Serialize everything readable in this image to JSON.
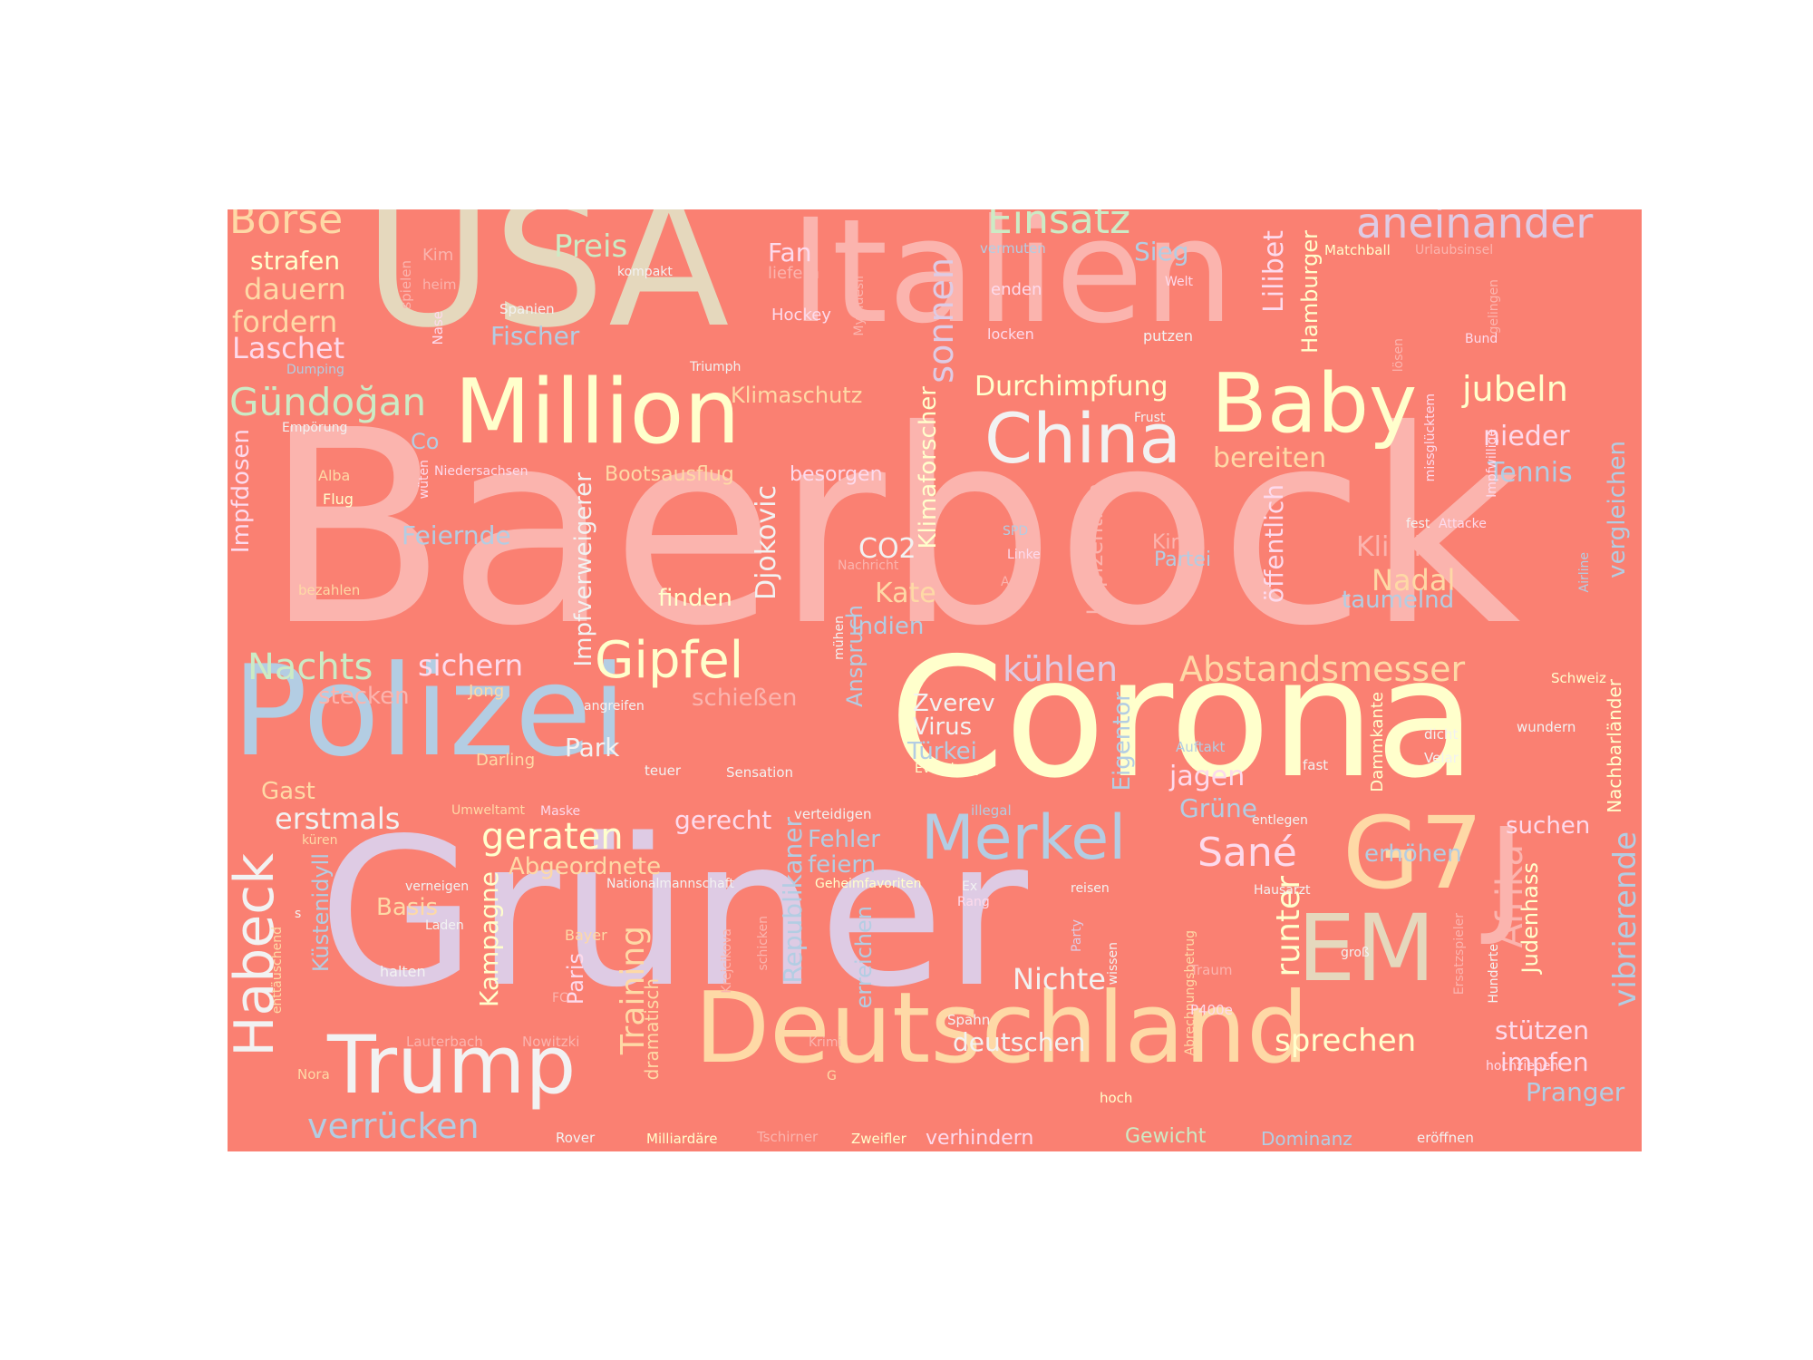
{
  "background_color": "#fa8072",
  "page_color": "#ffffff",
  "palette": {
    "pink": "#fbb4ae",
    "blue": "#b3cde3",
    "green": "#ccebc5",
    "lilac": "#decbe4",
    "orange": "#fed9a6",
    "yellow": "#ffffcc",
    "tan": "#e5d8bd",
    "rose": "#fddaec",
    "grey": "#f2f2f2"
  },
  "words": [
    {
      "text": "Baerbock",
      "color": "pink"
    },
    {
      "text": "Grüner",
      "color": "lilac"
    },
    {
      "text": "Corona",
      "color": "yellow"
    },
    {
      "text": "USA",
      "color": "tan"
    },
    {
      "text": "Italien",
      "color": "pink"
    },
    {
      "text": "Polizei",
      "color": "blue"
    },
    {
      "text": "Deutschland",
      "color": "orange"
    },
    {
      "text": "Million",
      "color": "yellow"
    },
    {
      "text": "Trump",
      "color": "grey"
    },
    {
      "text": "Baby",
      "color": "yellow"
    },
    {
      "text": "China",
      "color": "grey"
    },
    {
      "text": "G7",
      "color": "orange"
    },
    {
      "text": "EM",
      "color": "tan"
    },
    {
      "text": "J",
      "color": "pink"
    },
    {
      "text": "Merkel",
      "color": "blue"
    },
    {
      "text": "Habeck",
      "color": "grey"
    },
    {
      "text": "Gipfel",
      "color": "yellow"
    },
    {
      "text": "aneinander",
      "color": "lilac"
    },
    {
      "text": "Einsatz",
      "color": "green"
    },
    {
      "text": "Börse",
      "color": "orange"
    },
    {
      "text": "Gündoğan",
      "color": "green"
    },
    {
      "text": "Abstandsmesser",
      "color": "orange"
    },
    {
      "text": "kühlen",
      "color": "lilac"
    },
    {
      "text": "geraten",
      "color": "yellow"
    },
    {
      "text": "Nachts",
      "color": "green"
    },
    {
      "text": "sichern",
      "color": "rose"
    },
    {
      "text": "Sané",
      "color": "rose"
    },
    {
      "text": "Afrika",
      "color": "pink"
    },
    {
      "text": "jubeln",
      "color": "yellow"
    },
    {
      "text": "Training",
      "color": "orange"
    },
    {
      "text": "runter",
      "color": "yellow"
    },
    {
      "text": "sprechen",
      "color": "yellow"
    },
    {
      "text": "verrücken",
      "color": "blue"
    },
    {
      "text": "vibrierende",
      "color": "blue"
    },
    {
      "text": "Durchimpfung",
      "color": "yellow"
    },
    {
      "text": "erstmals",
      "color": "grey"
    },
    {
      "text": "Preis",
      "color": "green"
    },
    {
      "text": "Laschet",
      "color": "rose"
    },
    {
      "text": "fordern",
      "color": "orange"
    },
    {
      "text": "dauern",
      "color": "orange"
    },
    {
      "text": "strafen",
      "color": "yellow"
    },
    {
      "text": "Lilibet",
      "color": "rose"
    },
    {
      "text": "Hamburger",
      "color": "yellow"
    },
    {
      "text": "Sieg",
      "color": "blue"
    },
    {
      "text": "sonnen",
      "color": "lilac"
    },
    {
      "text": "nieder",
      "color": "rose"
    },
    {
      "text": "Tennis",
      "color": "blue"
    },
    {
      "text": "bereiten",
      "color": "orange"
    },
    {
      "text": "Klinik",
      "color": "pink"
    },
    {
      "text": "Nadal",
      "color": "orange"
    },
    {
      "text": "taumelnd",
      "color": "blue"
    },
    {
      "text": "Partei",
      "color": "blue"
    },
    {
      "text": "Kind",
      "color": "pink"
    },
    {
      "text": "öffentlich",
      "color": "rose"
    },
    {
      "text": "Impfzentren",
      "color": "pink"
    },
    {
      "text": "Kate",
      "color": "orange"
    },
    {
      "text": "Indien",
      "color": "blue"
    },
    {
      "text": "Klimaforscher",
      "color": "yellow"
    },
    {
      "text": "CO2",
      "color": "grey"
    },
    {
      "text": "finden",
      "color": "yellow"
    },
    {
      "text": "Djokovic",
      "color": "grey"
    },
    {
      "text": "Impfverweigerer",
      "color": "grey"
    },
    {
      "text": "Impfdosen",
      "color": "rose"
    },
    {
      "text": "Feiernde",
      "color": "blue"
    },
    {
      "text": "Co",
      "color": "blue"
    },
    {
      "text": "Bootsausflug",
      "color": "orange"
    },
    {
      "text": "besorgen",
      "color": "rose"
    },
    {
      "text": "Klimaschutz",
      "color": "orange"
    },
    {
      "text": "Fan",
      "color": "rose"
    },
    {
      "text": "liefern",
      "color": "pink"
    },
    {
      "text": "Hockey",
      "color": "rose"
    },
    {
      "text": "Fischer",
      "color": "blue"
    },
    {
      "text": "Zverev",
      "color": "grey"
    },
    {
      "text": "Virus",
      "color": "grey"
    },
    {
      "text": "Türkei",
      "color": "blue"
    },
    {
      "text": "Anspruch",
      "color": "blue"
    },
    {
      "text": "Park",
      "color": "grey"
    },
    {
      "text": "schießen",
      "color": "pink"
    },
    {
      "text": "stecken",
      "color": "pink"
    },
    {
      "text": "Gast",
      "color": "orange"
    },
    {
      "text": "Darling",
      "color": "orange"
    },
    {
      "text": "jagen",
      "color": "rose"
    },
    {
      "text": "Grüne",
      "color": "blue"
    },
    {
      "text": "Eigentor",
      "color": "blue"
    },
    {
      "text": "gerecht",
      "color": "rose"
    },
    {
      "text": "Abgeordnete",
      "color": "orange"
    },
    {
      "text": "Fehler",
      "color": "blue"
    },
    {
      "text": "feiern",
      "color": "blue"
    },
    {
      "text": "Republikaner",
      "color": "blue"
    },
    {
      "text": "erhöhen",
      "color": "blue"
    },
    {
      "text": "suchen",
      "color": "rose"
    },
    {
      "text": "Judenhass",
      "color": "yellow"
    },
    {
      "text": "Nachbarländer",
      "color": "yellow"
    },
    {
      "text": "vergleichen",
      "color": "blue"
    },
    {
      "text": "Dammkante",
      "color": "yellow"
    },
    {
      "text": "Nichte",
      "color": "grey"
    },
    {
      "text": "deutschen",
      "color": "grey"
    },
    {
      "text": "stützen",
      "color": "rose"
    },
    {
      "text": "impfen",
      "color": "rose"
    },
    {
      "text": "Pranger",
      "color": "blue"
    },
    {
      "text": "Kampagne",
      "color": "yellow"
    },
    {
      "text": "Paris",
      "color": "rose"
    },
    {
      "text": "Basis",
      "color": "orange"
    },
    {
      "text": "Küstenidyll",
      "color": "blue"
    },
    {
      "text": "erreichen",
      "color": "blue"
    },
    {
      "text": "dramatisch",
      "color": "orange"
    },
    {
      "text": "verhindern",
      "color": "rose"
    },
    {
      "text": "Gewicht",
      "color": "green"
    },
    {
      "text": "Dominanz",
      "color": "blue"
    },
    {
      "text": "Abrechnungsbetrug",
      "color": "orange"
    },
    {
      "text": "kämpfen",
      "color": "grey"
    },
    {
      "text": "Kanzlerkandidatin",
      "color": "pink"
    },
    {
      "text": "vermuten",
      "color": "blue"
    },
    {
      "text": "Matchball",
      "color": "yellow"
    },
    {
      "text": "Urlaubsinsel",
      "color": "pink"
    },
    {
      "text": "Kim",
      "color": "pink"
    },
    {
      "text": "heim",
      "color": "pink"
    },
    {
      "text": "spielen",
      "color": "pink"
    },
    {
      "text": "Nase",
      "color": "rose"
    },
    {
      "text": "Spanien",
      "color": "grey"
    },
    {
      "text": "kompakt",
      "color": "grey"
    },
    {
      "text": "Mymuesli",
      "color": "pink"
    },
    {
      "text": "enden",
      "color": "rose"
    },
    {
      "text": "locken",
      "color": "rose"
    },
    {
      "text": "putzen",
      "color": "grey"
    },
    {
      "text": "Welt",
      "color": "rose"
    },
    {
      "text": "Bund",
      "color": "rose"
    },
    {
      "text": "lösen",
      "color": "pink"
    },
    {
      "text": "gelingen",
      "color": "pink"
    },
    {
      "text": "Triumph",
      "color": "grey"
    },
    {
      "text": "Dumping",
      "color": "blue"
    },
    {
      "text": "Empörung",
      "color": "grey"
    },
    {
      "text": "Frust",
      "color": "grey"
    },
    {
      "text": "Niedersachsen",
      "color": "rose"
    },
    {
      "text": "wüten",
      "color": "rose"
    },
    {
      "text": "Alba",
      "color": "orange"
    },
    {
      "text": "Flug",
      "color": "yellow"
    },
    {
      "text": "bezahlen",
      "color": "orange"
    },
    {
      "text": "Nachricht",
      "color": "pink"
    },
    {
      "text": "SPD",
      "color": "blue"
    },
    {
      "text": "Linke",
      "color": "rose"
    },
    {
      "text": "Anti",
      "color": "pink"
    },
    {
      "text": "missglücktem",
      "color": "rose"
    },
    {
      "text": "Impfwillige",
      "color": "rose"
    },
    {
      "text": "fest",
      "color": "grey"
    },
    {
      "text": "Attacke",
      "color": "rose"
    },
    {
      "text": "Airline",
      "color": "blue"
    },
    {
      "text": "Schweiz",
      "color": "yellow"
    },
    {
      "text": "wundern",
      "color": "grey"
    },
    {
      "text": "dicht",
      "color": "grey"
    },
    {
      "text": "Velar",
      "color": "grey"
    },
    {
      "text": "fast",
      "color": "grey"
    },
    {
      "text": "Auftakt",
      "color": "blue"
    },
    {
      "text": "Everybody",
      "color": "yellow"
    },
    {
      "text": "illegal",
      "color": "blue"
    },
    {
      "text": "entlegen",
      "color": "grey"
    },
    {
      "text": "Jong",
      "color": "orange"
    },
    {
      "text": "angreifen",
      "color": "grey"
    },
    {
      "text": "mühen",
      "color": "grey"
    },
    {
      "text": "teuer",
      "color": "grey"
    },
    {
      "text": "Sensation",
      "color": "grey"
    },
    {
      "text": "Umweltamt",
      "color": "orange"
    },
    {
      "text": "Maske",
      "color": "rose"
    },
    {
      "text": "verteidigen",
      "color": "grey"
    },
    {
      "text": "küren",
      "color": "orange"
    },
    {
      "text": "Nationalmannschaft",
      "color": "grey"
    },
    {
      "text": "Geheimfavoriten",
      "color": "yellow"
    },
    {
      "text": "verneigen",
      "color": "grey"
    },
    {
      "text": "Ex",
      "color": "grey"
    },
    {
      "text": "Rang",
      "color": "rose"
    },
    {
      "text": "reisen",
      "color": "grey"
    },
    {
      "text": "Hausarzt",
      "color": "grey"
    },
    {
      "text": "s",
      "color": "grey"
    },
    {
      "text": "Laden",
      "color": "grey"
    },
    {
      "text": "Bayer",
      "color": "orange"
    },
    {
      "text": "Krejcikova",
      "color": "pink"
    },
    {
      "text": "schicken",
      "color": "pink"
    },
    {
      "text": "Party",
      "color": "lilac"
    },
    {
      "text": "wissen",
      "color": "grey"
    },
    {
      "text": "Traum",
      "color": "pink"
    },
    {
      "text": "groß",
      "color": "grey"
    },
    {
      "text": "Ersatzspieler",
      "color": "pink"
    },
    {
      "text": "Hunderte",
      "color": "grey"
    },
    {
      "text": "halten",
      "color": "grey"
    },
    {
      "text": "enttäuschend",
      "color": "orange"
    },
    {
      "text": "FC",
      "color": "pink"
    },
    {
      "text": "P400e",
      "color": "rose"
    },
    {
      "text": "Spahn",
      "color": "grey"
    },
    {
      "text": "Lauterbach",
      "color": "pink"
    },
    {
      "text": "Nowitzki",
      "color": "pink"
    },
    {
      "text": "Krimi",
      "color": "pink"
    },
    {
      "text": "hochziehen",
      "color": "rose"
    },
    {
      "text": "Nora",
      "color": "orange"
    },
    {
      "text": "G",
      "color": "orange"
    },
    {
      "text": "hoch",
      "color": "yellow"
    },
    {
      "text": "Rover",
      "color": "grey"
    },
    {
      "text": "Milliardäre",
      "color": "yellow"
    },
    {
      "text": "Tschirner",
      "color": "pink"
    },
    {
      "text": "Zweifler",
      "color": "yellow"
    },
    {
      "text": "eröffnen",
      "color": "grey"
    }
  ]
}
